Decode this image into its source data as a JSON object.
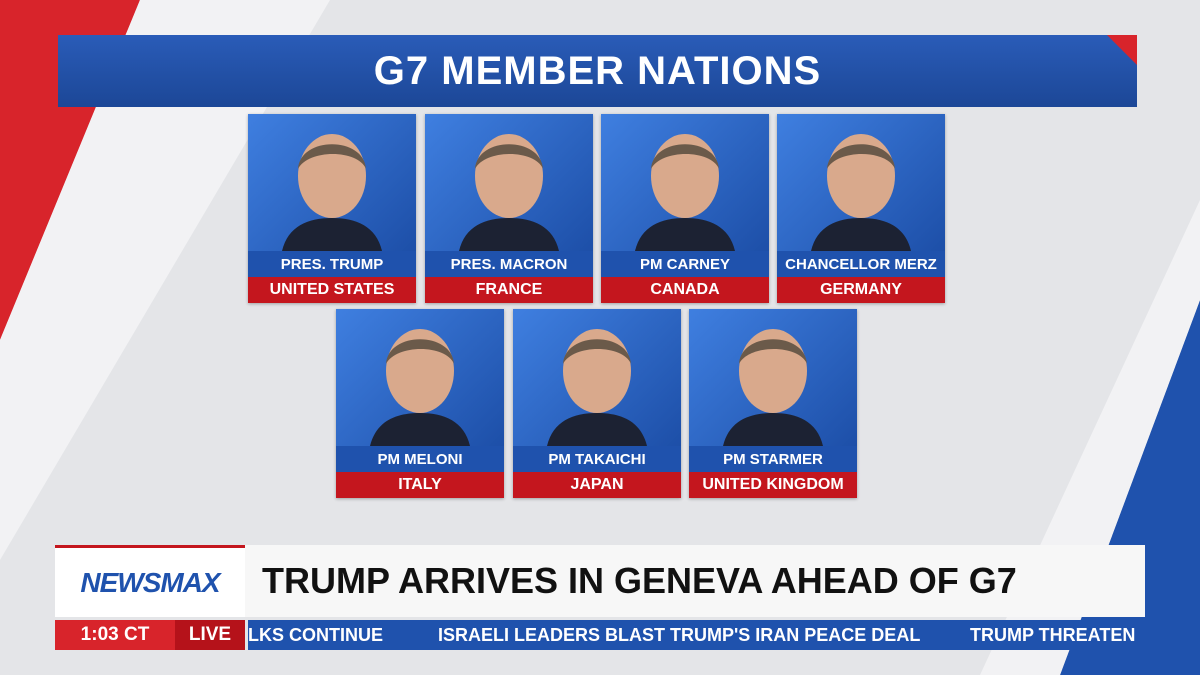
{
  "header": {
    "title": "G7 MEMBER NATIONS"
  },
  "leaders": [
    {
      "name": "PRES. TRUMP",
      "country": "UNITED STATES"
    },
    {
      "name": "PRES. MACRON",
      "country": "FRANCE"
    },
    {
      "name": "PM CARNEY",
      "country": "CANADA"
    },
    {
      "name": "CHANCELLOR MERZ",
      "country": "GERMANY"
    },
    {
      "name": "PM MELONI",
      "country": "ITALY"
    },
    {
      "name": "PM TAKAICHI",
      "country": "JAPAN"
    },
    {
      "name": "PM STARMER",
      "country": "UNITED KINGDOM"
    }
  ],
  "lower_third": {
    "logo": "NEWSMAX",
    "headline": "TRUMP ARRIVES IN GENEVA AHEAD OF G7",
    "time": "1:03 CT",
    "live": "LIVE",
    "ticker": [
      "LKS CONTINUE",
      "ISRAELI LEADERS BLAST TRUMP'S IRAN PEACE DEAL",
      "TRUMP THREATEN"
    ]
  }
}
